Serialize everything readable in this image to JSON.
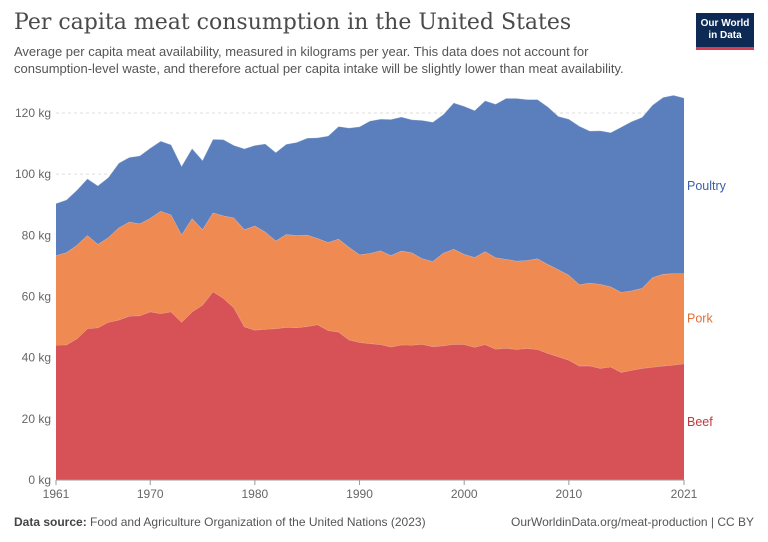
{
  "header": {
    "title": "Per capita meat consumption in the United States",
    "subtitle": "Average per capita meat availability, measured in kilograms per year. This data does not account for consumption-level waste, and therefore actual per capita intake will be slightly lower than meat availability.",
    "logo_line1": "Our World",
    "logo_line2": "in Data"
  },
  "footer": {
    "source_label": "Data source:",
    "source_text": "Food and Agriculture Organization of the United Nations (2023)",
    "url": "OurWorldinData.org/meat-production | CC BY"
  },
  "colors": {
    "beef": "#d65256",
    "pork": "#ef8a53",
    "poultry": "#5b7fbd",
    "beef_label": "#c0393d",
    "pork_label": "#e0703a",
    "poultry_label": "#3b5fa8",
    "grid": "#dddddd"
  },
  "chart_data": {
    "type": "area",
    "stacked": true,
    "x_tick_labels": [
      "1961",
      "1970",
      "1980",
      "1990",
      "2000",
      "2010",
      "2021"
    ],
    "y_tick_labels": [
      "0 kg",
      "20 kg",
      "40 kg",
      "60 kg",
      "80 kg",
      "100 kg",
      "120 kg"
    ],
    "y_ticks": [
      0,
      20,
      40,
      60,
      80,
      100,
      120
    ],
    "xlim": [
      1961,
      2021
    ],
    "ylim": [
      0,
      125
    ],
    "x": [
      1961,
      1962,
      1963,
      1964,
      1965,
      1966,
      1967,
      1968,
      1969,
      1970,
      1971,
      1972,
      1973,
      1974,
      1975,
      1976,
      1977,
      1978,
      1979,
      1980,
      1981,
      1982,
      1983,
      1984,
      1985,
      1986,
      1987,
      1988,
      1989,
      1990,
      1991,
      1992,
      1993,
      1994,
      1995,
      1996,
      1997,
      1998,
      1999,
      2000,
      2001,
      2002,
      2003,
      2004,
      2005,
      2006,
      2007,
      2008,
      2009,
      2010,
      2011,
      2012,
      2013,
      2014,
      2015,
      2016,
      2017,
      2018,
      2019,
      2020,
      2021
    ],
    "series": [
      {
        "name": "Beef",
        "values": [
          44.1,
          44.2,
          46.2,
          49.5,
          49.8,
          51.6,
          52.3,
          53.6,
          53.7,
          55.0,
          54.4,
          55.0,
          51.6,
          55.0,
          57.2,
          61.6,
          59.4,
          56.3,
          50.1,
          49.0,
          49.3,
          49.5,
          49.9,
          49.8,
          50.2,
          50.8,
          48.9,
          48.4,
          45.8,
          45.0,
          44.6,
          44.3,
          43.5,
          44.2,
          44.1,
          44.4,
          43.6,
          43.9,
          44.4,
          44.3,
          43.4,
          44.3,
          42.8,
          43.1,
          42.7,
          43.0,
          42.7,
          41.4,
          40.3,
          39.2,
          37.3,
          37.3,
          36.5,
          37.0,
          35.2,
          35.9,
          36.5,
          36.9,
          37.3,
          37.6,
          38.0
        ]
      },
      {
        "name": "Pork",
        "values": [
          29.3,
          30.2,
          30.6,
          30.5,
          27.3,
          27.7,
          30.2,
          30.8,
          30.1,
          30.6,
          33.5,
          31.7,
          28.6,
          30.5,
          24.7,
          25.8,
          27.0,
          29.4,
          31.8,
          34.1,
          31.8,
          28.7,
          30.4,
          30.2,
          29.9,
          28.2,
          28.8,
          30.4,
          30.3,
          28.7,
          29.5,
          30.7,
          29.9,
          30.7,
          30.2,
          28.0,
          27.9,
          30.3,
          31.1,
          29.5,
          29.4,
          30.4,
          29.9,
          29.1,
          28.9,
          28.8,
          29.7,
          29.1,
          28.5,
          27.8,
          26.6,
          27.1,
          27.5,
          26.2,
          26.2,
          26.0,
          26.2,
          29.3,
          30.0,
          29.9,
          29.5
        ]
      },
      {
        "name": "Poultry",
        "values": [
          17.0,
          17.2,
          18.0,
          18.5,
          19.1,
          19.6,
          21.1,
          21.1,
          22.2,
          22.9,
          22.9,
          22.9,
          22.4,
          22.9,
          22.6,
          24.0,
          24.9,
          23.7,
          26.4,
          26.3,
          28.8,
          28.9,
          29.5,
          30.4,
          31.7,
          32.9,
          34.8,
          36.8,
          39.0,
          41.8,
          43.3,
          43.0,
          44.5,
          43.8,
          43.5,
          45.2,
          45.5,
          45.3,
          47.8,
          48.4,
          48.0,
          49.3,
          50.2,
          52.6,
          53.2,
          52.6,
          52.0,
          51.5,
          50.1,
          51.0,
          51.8,
          49.7,
          50.2,
          50.4,
          54.0,
          55.3,
          55.9,
          56.4,
          57.8,
          58.3,
          57.4
        ]
      }
    ]
  },
  "legend": {
    "poultry": "Poultry",
    "pork": "Pork",
    "beef": "Beef"
  }
}
